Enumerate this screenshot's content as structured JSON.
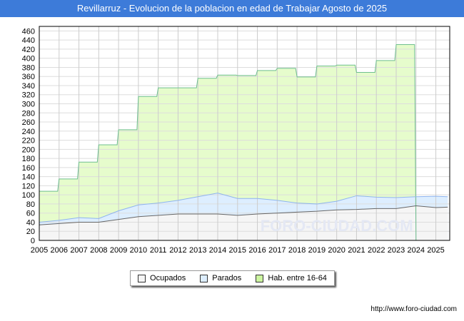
{
  "title": "Revillarruz - Evolucion de la poblacion en edad de Trabajar Agosto de 2025",
  "url": "http://www.foro-ciudad.com",
  "watermark": "FORO-CIUDAD.COM",
  "chart_data": {
    "type": "area",
    "title": "Revillarruz - Evolucion de la poblacion en edad de Trabajar Agosto de 2025",
    "xlim": [
      2005,
      2025.7
    ],
    "ylim": [
      0,
      470
    ],
    "x_ticks": [
      2005,
      2006,
      2007,
      2008,
      2009,
      2010,
      2011,
      2012,
      2013,
      2014,
      2015,
      2016,
      2017,
      2018,
      2019,
      2020,
      2021,
      2022,
      2023,
      2024,
      2025
    ],
    "y_ticks": [
      0,
      20,
      40,
      60,
      80,
      100,
      120,
      140,
      160,
      180,
      200,
      220,
      240,
      260,
      280,
      300,
      320,
      340,
      360,
      380,
      400,
      420,
      440,
      460
    ],
    "grid": true,
    "legend_position": "bottom",
    "colors": {
      "Ocupados": "#f5f5f5",
      "Parados": "#ddeeff",
      "Hab": "#e6fccc"
    },
    "line_colors": {
      "Ocupados": "#666666",
      "Parados": "#8fb4ee",
      "Hab": "#6fbf8f"
    },
    "series": [
      {
        "name": "Hab. entre 16-64",
        "key": "Hab",
        "x": [
          2005,
          2006,
          2007,
          2008,
          2009,
          2010,
          2011,
          2012,
          2013,
          2014,
          2015,
          2016,
          2017,
          2018,
          2019,
          2020,
          2021,
          2022,
          2023
        ],
        "values": [
          108,
          135,
          172,
          210,
          243,
          316,
          335,
          335,
          356,
          363,
          362,
          373,
          378,
          359,
          383,
          385,
          369,
          395,
          430
        ]
      },
      {
        "name": "Parados",
        "key": "Parados",
        "x": [
          2005,
          2006,
          2007,
          2008,
          2009,
          2010,
          2011,
          2012,
          2013,
          2014,
          2015,
          2016,
          2017,
          2018,
          2019,
          2020,
          2021,
          2022,
          2023,
          2024,
          2025,
          2025.6
        ],
        "values": [
          40,
          44,
          50,
          48,
          65,
          78,
          82,
          88,
          96,
          104,
          92,
          92,
          88,
          82,
          80,
          86,
          98,
          95,
          94,
          96,
          97,
          96
        ]
      },
      {
        "name": "Ocupados",
        "key": "Ocupados",
        "x": [
          2005,
          2006,
          2007,
          2008,
          2009,
          2010,
          2011,
          2012,
          2013,
          2014,
          2015,
          2016,
          2017,
          2018,
          2019,
          2020,
          2021,
          2022,
          2023,
          2024,
          2025,
          2025.6
        ],
        "values": [
          34,
          37,
          40,
          40,
          46,
          52,
          55,
          58,
          58,
          58,
          55,
          58,
          60,
          62,
          64,
          67,
          68,
          70,
          70,
          76,
          72,
          73
        ]
      }
    ],
    "legend": [
      "Ocupados",
      "Parados",
      "Hab. entre 16-64"
    ]
  }
}
